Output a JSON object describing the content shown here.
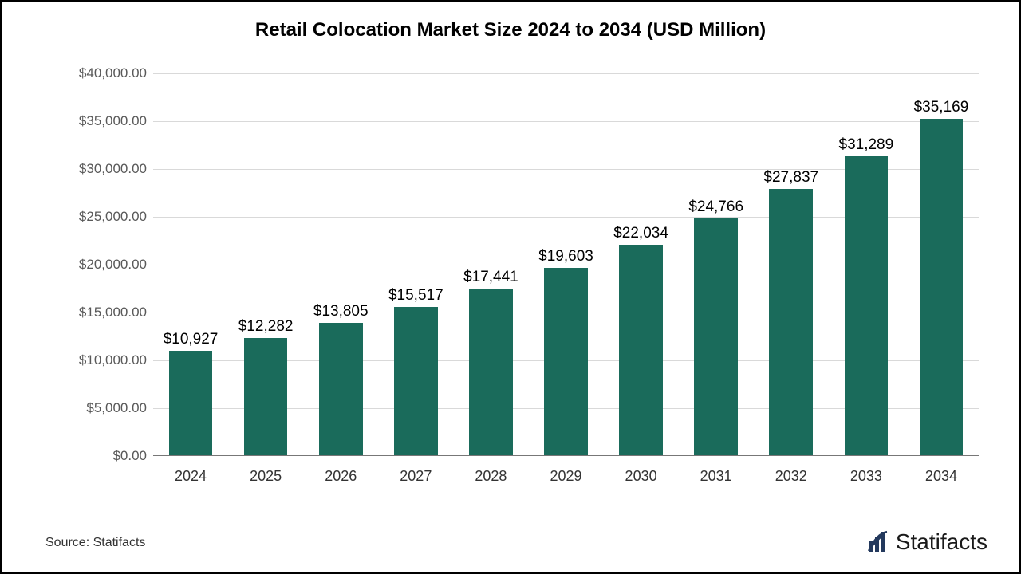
{
  "chart": {
    "type": "bar",
    "title": "Retail Colocation Market Size 2024 to 2034 (USD Million)",
    "title_fontsize": 24,
    "title_color": "#000000",
    "background_color": "#ffffff",
    "border_color": "#000000",
    "grid_color": "#d9d9d9",
    "axis_color": "#777777",
    "ytick_label_color": "#595959",
    "xtick_label_color": "#333333",
    "bar_label_color": "#000000",
    "bar_color": "#1a6b5b",
    "bar_width_ratio": 0.58,
    "ylim": [
      0,
      40000
    ],
    "ytick_step": 5000,
    "ytick_labels": [
      "$0.00",
      "$5,000.00",
      "$10,000.00",
      "$15,000.00",
      "$20,000.00",
      "$25,000.00",
      "$30,000.00",
      "$35,000.00",
      "$40,000.00"
    ],
    "ytick_fontsize": 17,
    "xtick_fontsize": 18,
    "bar_label_fontsize": 19,
    "categories": [
      "2024",
      "2025",
      "2026",
      "2027",
      "2028",
      "2029",
      "2030",
      "2031",
      "2032",
      "2033",
      "2034"
    ],
    "values": [
      10927,
      12282,
      13805,
      15517,
      17441,
      19603,
      22034,
      24766,
      27837,
      31289,
      35169
    ],
    "value_labels": [
      "$10,927",
      "$12,282",
      "$13,805",
      "$15,517",
      "$17,441",
      "$19,603",
      "$22,034",
      "$24,766",
      "$27,837",
      "$31,289",
      "$35,169"
    ]
  },
  "footer": {
    "source_text": "Source: Statifacts",
    "fontsize": 16,
    "color": "#333333"
  },
  "brand": {
    "name": "Statifacts",
    "fontsize": 28,
    "color": "#1a1a1a",
    "icon_color": "#23395d"
  }
}
